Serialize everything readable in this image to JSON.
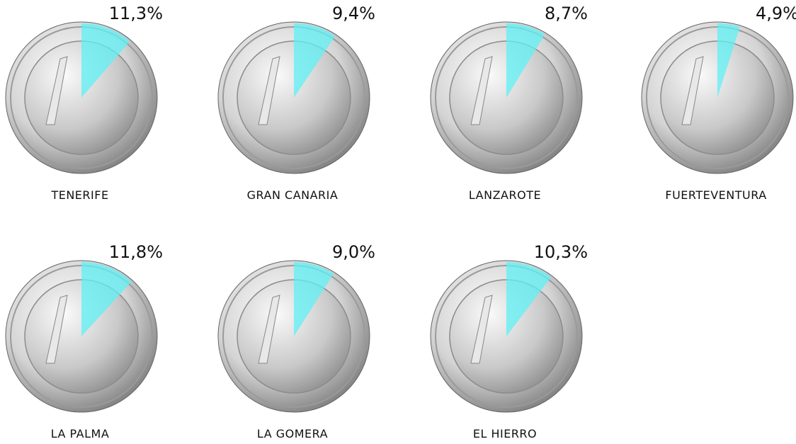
{
  "chart_data": {
    "type": "pie",
    "categories": [
      "TENERIFE",
      "GRAN CANARIA",
      "LANZAROTE",
      "FUERTEVENTURA",
      "LA PALMA",
      "LA GOMERA",
      "EL HIERRO"
    ],
    "values": [
      11.3,
      9.4,
      8.7,
      4.9,
      11.8,
      9.0,
      10.3
    ],
    "value_labels": [
      "11,3%",
      "9,4%",
      "8,7%",
      "4,9%",
      "11,8%",
      "9,0%",
      "10,3%"
    ],
    "color": "#5ff0f5"
  }
}
